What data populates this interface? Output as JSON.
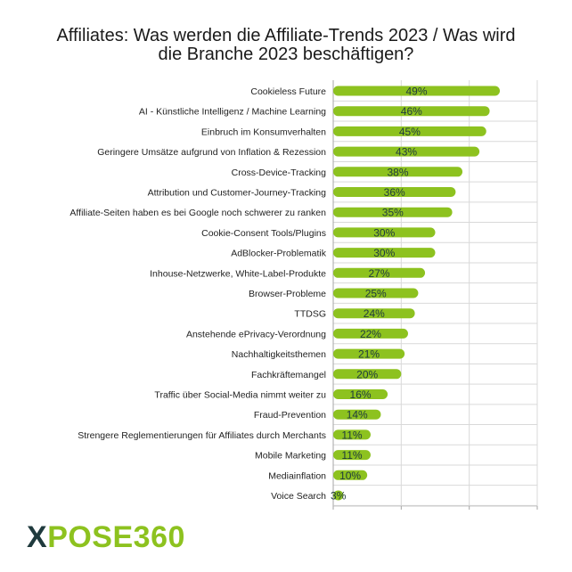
{
  "chart_data": {
    "type": "bar",
    "orientation": "horizontal",
    "title_lines": [
      "Affiliates: Was werden die Affiliate-Trends 2023 / Was wird",
      "die Branche 2023 beschäftigen?"
    ],
    "categories": [
      "Cookieless Future",
      "AI - Künstliche Intelligenz / Machine Learning",
      "Einbruch im Konsumverhalten",
      "Geringere Umsätze aufgrund von Inflation & Rezession",
      "Cross-Device-Tracking",
      "Attribution und Customer-Journey-Tracking",
      "Affiliate-Seiten haben es bei Google noch schwerer zu ranken",
      "Cookie-Consent Tools/Plugins",
      "AdBlocker-Problematik",
      "Inhouse-Netzwerke, White-Label-Produkte",
      "Browser-Probleme",
      "TTDSG",
      "Anstehende ePrivacy-Verordnung",
      "Nachhaltigkeitsthemen",
      "Fachkräftemangel",
      "Traffic über Social-Media nimmt weiter zu",
      "Fraud-Prevention",
      "Strengere Reglementierungen für Affiliates durch Merchants",
      "Mobile Marketing",
      "Mediainflation",
      "Voice Search"
    ],
    "values": [
      49,
      46,
      45,
      43,
      38,
      36,
      35,
      30,
      30,
      27,
      25,
      24,
      22,
      21,
      20,
      16,
      14,
      11,
      11,
      10,
      3
    ],
    "value_labels": [
      "49%",
      "46%",
      "45%",
      "43%",
      "38%",
      "36%",
      "35%",
      "30%",
      "30%",
      "27%",
      "25%",
      "24%",
      "22%",
      "21%",
      "20%",
      "16%",
      "14%",
      "11%",
      "11%",
      "10%",
      "3%"
    ],
    "xlim": [
      0,
      60
    ],
    "grid": true,
    "bar_color": "#8dc21f"
  },
  "logo": {
    "mark": "X",
    "rest": "POSE360",
    "colors": {
      "mark": "#1f3a3d",
      "rest": "#8dc21f"
    }
  }
}
